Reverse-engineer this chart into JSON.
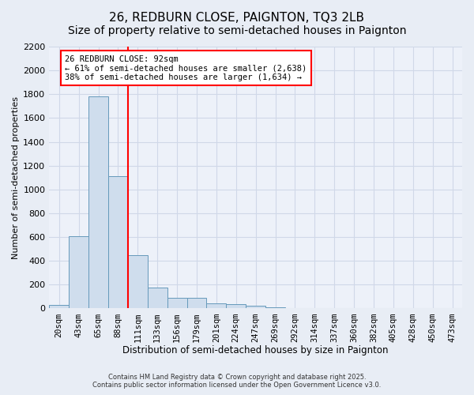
{
  "title": "26, REDBURN CLOSE, PAIGNTON, TQ3 2LB",
  "subtitle": "Size of property relative to semi-detached houses in Paignton",
  "xlabel": "Distribution of semi-detached houses by size in Paignton",
  "ylabel": "Number of semi-detached properties",
  "footer_line1": "Contains HM Land Registry data © Crown copyright and database right 2025.",
  "footer_line2": "Contains public sector information licensed under the Open Government Licence v3.0.",
  "bin_labels": [
    "20sqm",
    "43sqm",
    "65sqm",
    "88sqm",
    "111sqm",
    "133sqm",
    "156sqm",
    "179sqm",
    "201sqm",
    "224sqm",
    "247sqm",
    "269sqm",
    "292sqm",
    "314sqm",
    "337sqm",
    "360sqm",
    "382sqm",
    "405sqm",
    "428sqm",
    "450sqm",
    "473sqm"
  ],
  "bar_values": [
    30,
    610,
    1780,
    1110,
    450,
    175,
    90,
    90,
    40,
    35,
    20,
    10,
    5,
    5,
    5,
    5,
    5,
    5,
    0,
    0,
    0
  ],
  "bar_color": "#cfdded",
  "bar_edge_color": "#6699bb",
  "red_line_bin_index": 3,
  "annotation_title": "26 REDBURN CLOSE: 92sqm",
  "annotation_line2": "← 61% of semi-detached houses are smaller (2,638)",
  "annotation_line3": "38% of semi-detached houses are larger (1,634) →",
  "annotation_box_color": "white",
  "annotation_box_edge": "red",
  "ylim": [
    0,
    2200
  ],
  "yticks": [
    0,
    200,
    400,
    600,
    800,
    1000,
    1200,
    1400,
    1600,
    1800,
    2000,
    2200
  ],
  "background_color": "#e8edf5",
  "plot_background": "#edf1f9",
  "grid_color": "#d0d8e8",
  "title_fontsize": 11,
  "subtitle_fontsize": 10,
  "tick_fontsize": 7.5,
  "ylabel_fontsize": 8,
  "xlabel_fontsize": 8.5
}
